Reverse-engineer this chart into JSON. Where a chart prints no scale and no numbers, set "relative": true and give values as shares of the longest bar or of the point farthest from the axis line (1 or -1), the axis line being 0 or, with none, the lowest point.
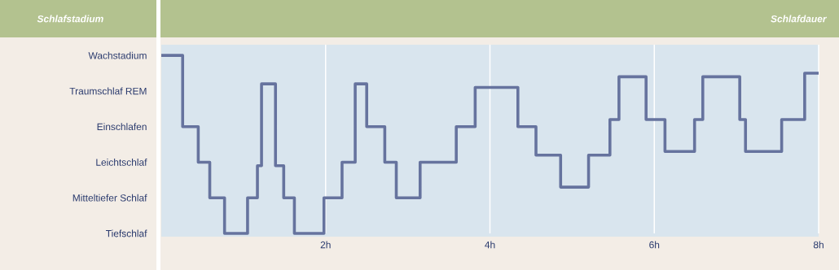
{
  "chart_data": {
    "type": "step",
    "xlabel": "Schlafdauer",
    "relative": true,
    "xlim": [
      0,
      8
    ],
    "xticks": [
      {
        "value": 2,
        "label": "2h"
      },
      {
        "value": 4,
        "label": "4h"
      },
      {
        "value": 6,
        "label": "6h"
      },
      {
        "value": 8,
        "label": "8h"
      }
    ],
    "annotations": [
      "Schlafstadium",
      "Wachstadium",
      "Traumschlaf REM",
      "Einschlafen",
      "Leichtschlaf",
      "Mitteltiefer Schlaf",
      "Tiefschlaf"
    ],
    "grid": "x",
    "marker": "none",
    "line_style": "solid",
    "series": [
      {
        "color": "#66739e",
        "x": [
          0,
          0.26,
          0.45,
          0.59,
          0.77,
          1.05,
          1.17,
          1.22,
          1.39,
          1.49,
          1.62,
          1.98,
          2.2,
          2.36,
          2.5,
          2.72,
          2.86,
          3.15,
          3.59,
          3.82,
          4.34,
          4.56,
          4.86,
          5.2,
          5.46,
          5.57,
          5.9,
          6.13,
          6.49,
          6.59,
          7.04,
          7.11,
          7.55,
          7.83,
          8.0
        ],
        "values": [
          1,
          0.6,
          0.4,
          0.2,
          0,
          0.2,
          0.38,
          0.84,
          0.38,
          0.2,
          0,
          0.2,
          0.4,
          0.84,
          0.6,
          0.4,
          0.2,
          0.4,
          0.6,
          0.82,
          0.6,
          0.44,
          0.26,
          0.44,
          0.64,
          0.88,
          0.64,
          0.46,
          0.64,
          0.88,
          0.64,
          0.46,
          0.64,
          0.9,
          0.9
        ]
      }
    ]
  }
}
